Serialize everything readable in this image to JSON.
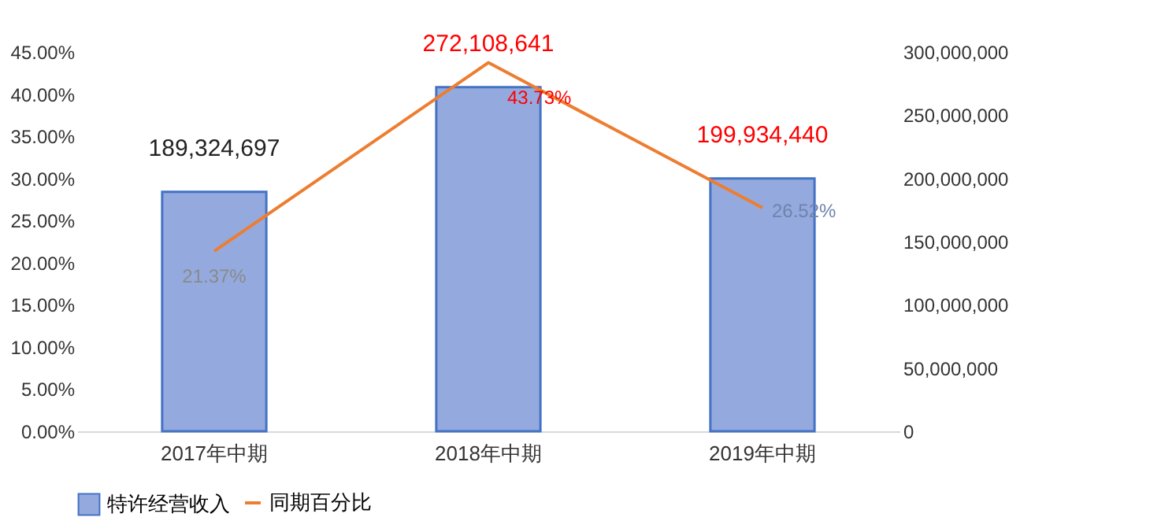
{
  "chart_data": {
    "type": "bar",
    "categories": [
      "2017年中期",
      "2018年中期",
      "2019年中期"
    ],
    "series": [
      {
        "name": "特许经营收入",
        "axis": "y2",
        "color": "#94aade",
        "values": [
          189324697,
          272108641,
          199934440
        ],
        "value_labels": [
          "189,324,697",
          "272,108,641",
          "199,934,440"
        ]
      },
      {
        "name": "同期百分比",
        "type": "line",
        "color": "#ed7d31",
        "values": [
          21.37,
          43.73,
          26.52
        ],
        "value_labels": [
          "21.37%",
          "43.73%",
          "26.52%"
        ]
      }
    ],
    "ylim": [
      0,
      45
    ],
    "yticks": [
      {
        "value": 0,
        "label": "0.00%"
      },
      {
        "value": 5,
        "label": "5.00%"
      },
      {
        "value": 10,
        "label": "10.00%"
      },
      {
        "value": 15,
        "label": "15.00%"
      },
      {
        "value": 20,
        "label": "20.00%"
      },
      {
        "value": 25,
        "label": "25.00%"
      },
      {
        "value": 30,
        "label": "30.00%"
      },
      {
        "value": 35,
        "label": "35.00%"
      },
      {
        "value": 40,
        "label": "40.00%"
      },
      {
        "value": 45,
        "label": "45.00%"
      }
    ],
    "y2lim": [
      0,
      300000000
    ],
    "y2ticks": [
      0,
      {
        "value": 50000000,
        "label": "50,000,000"
      },
      {
        "value": 100000000,
        "label": "100,000,000"
      },
      {
        "value": 150000000,
        "label": "150,000,000"
      },
      {
        "value": 200000000,
        "label": "200,000,000"
      },
      {
        "value": 250000000,
        "label": "250,000,000"
      },
      {
        "value": 300000000,
        "label": "300,000,000"
      }
    ],
    "legend": "bottom",
    "marker": "none",
    "line_style": "solid",
    "grid": false
  }
}
